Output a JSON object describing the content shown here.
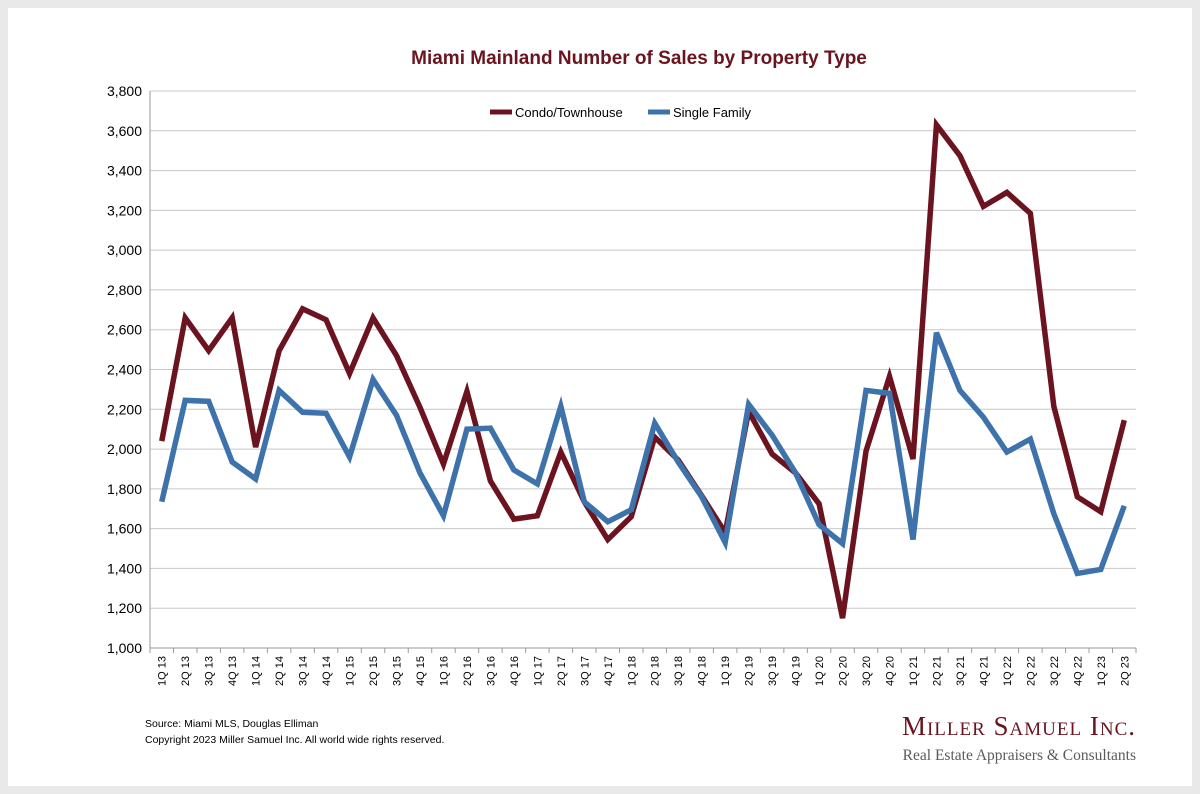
{
  "chart_data": {
    "type": "line",
    "title": "Miami Mainland Number of Sales by Property Type",
    "xlabel": "",
    "ylabel": "",
    "ylim": [
      1000,
      3800
    ],
    "yticks": [
      1000,
      1200,
      1400,
      1600,
      1800,
      2000,
      2200,
      2400,
      2600,
      2800,
      3000,
      3200,
      3400,
      3600,
      3800
    ],
    "ytick_labels": [
      "1,000",
      "1,200",
      "1,400",
      "1,600",
      "1,800",
      "2,000",
      "2,200",
      "2,400",
      "2,600",
      "2,800",
      "3,000",
      "3,200",
      "3,400",
      "3,600",
      "3,800"
    ],
    "grid": true,
    "legend_position": "top-center",
    "categories": [
      "1Q 13",
      "2Q 13",
      "3Q 13",
      "4Q 13",
      "1Q 14",
      "2Q 14",
      "3Q 14",
      "4Q 14",
      "1Q 15",
      "2Q 15",
      "3Q 15",
      "4Q 15",
      "1Q 16",
      "2Q 16",
      "3Q 16",
      "4Q 16",
      "1Q 17",
      "2Q 17",
      "3Q 17",
      "4Q 17",
      "1Q 18",
      "2Q 18",
      "3Q 18",
      "4Q 18",
      "1Q 19",
      "2Q 19",
      "3Q 19",
      "4Q 19",
      "1Q 20",
      "2Q 20",
      "3Q 20",
      "4Q 20",
      "1Q 21",
      "2Q 21",
      "3Q 21",
      "4Q 21",
      "1Q 22",
      "2Q 22",
      "3Q 22",
      "4Q 22",
      "1Q 23",
      "2Q 23"
    ],
    "series": [
      {
        "name": "Condo/Townhouse",
        "color": "#6b1420",
        "values": [
          2040,
          2660,
          2495,
          2660,
          2010,
          2495,
          2705,
          2650,
          2380,
          2660,
          2470,
          2210,
          1925,
          2290,
          1840,
          1648,
          1665,
          1985,
          1735,
          1545,
          1660,
          2060,
          1945,
          1765,
          1580,
          2190,
          1975,
          1880,
          1725,
          1150,
          1990,
          2365,
          1950,
          3630,
          3475,
          3220,
          3290,
          3185,
          2215,
          1760,
          1685,
          2145
        ]
      },
      {
        "name": "Single Family",
        "color": "#3e72aa",
        "values": [
          1735,
          2245,
          2240,
          1935,
          1850,
          2295,
          2185,
          2180,
          1960,
          2350,
          2170,
          1880,
          1665,
          2100,
          2105,
          1895,
          1825,
          2215,
          1735,
          1635,
          1695,
          2130,
          1935,
          1760,
          1530,
          2225,
          2070,
          1880,
          1620,
          1525,
          2295,
          2280,
          1545,
          2585,
          2295,
          2160,
          1985,
          2050,
          1675,
          1375,
          1395,
          1715
        ]
      }
    ]
  },
  "footer": {
    "source": "Source: Miami MLS, Douglas Elliman",
    "copyright": "Copyright 2023 Miller Samuel Inc.  All world wide rights reserved."
  },
  "brand": {
    "name": "Miller Samuel Inc.",
    "tagline": "Real Estate Appraisers & Consultants"
  }
}
